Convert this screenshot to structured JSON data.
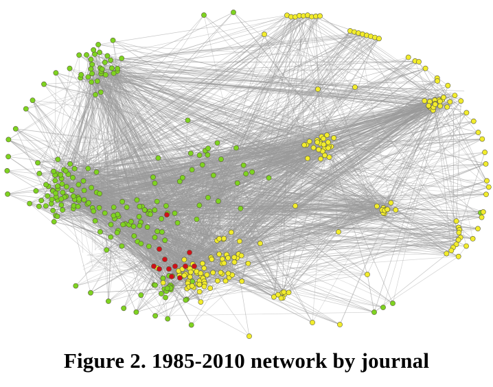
{
  "figure": {
    "caption": "Figure 2. 1985-2010 network by journal"
  },
  "colors": {
    "edge": "#9a9a9a",
    "green": "#7ed321",
    "yellow": "#f2ec2c",
    "red": "#d0101a",
    "node_stroke": "#5a5a3a",
    "background": "#ffffff"
  }
}
